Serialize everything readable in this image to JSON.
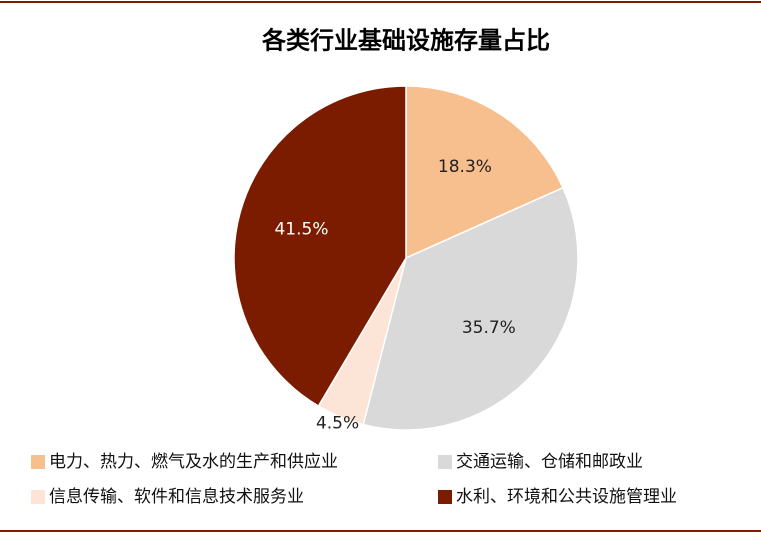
{
  "chart_data": {
    "type": "pie",
    "title": "各类行业基础设施存量占比",
    "categories": [
      "电力、热力、燃气及水的生产和供应业",
      "交通运输、仓储和邮政业",
      "信息传输、软件和信息技术服务业",
      "水利、环境和公共设施管理业"
    ],
    "values": [
      18.3,
      35.7,
      4.5,
      41.5
    ],
    "value_labels": [
      "18.3%",
      "35.7%",
      "4.5%",
      "41.5%"
    ],
    "colors": [
      "#f8bf8e",
      "#d9d9d9",
      "#fce4d6",
      "#7b1c00"
    ]
  }
}
